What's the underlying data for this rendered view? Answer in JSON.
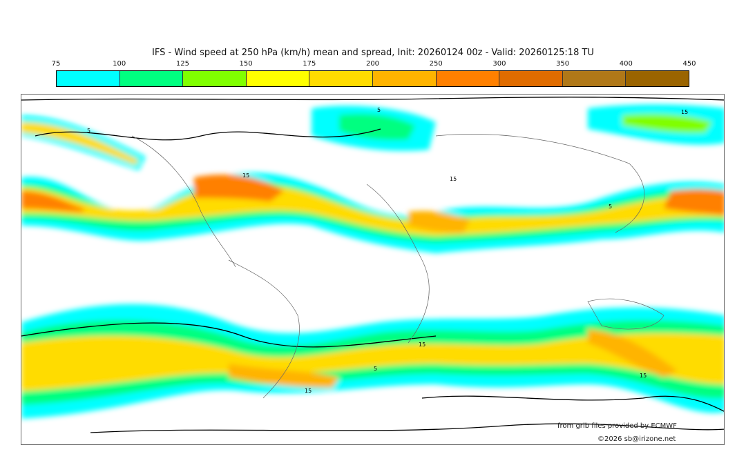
{
  "title": "IFS - Wind speed at 250 hPa (km/h) mean and spread, Init: 20260124 00z - Valid: 20260125:18 TU",
  "colorbar": {
    "ticks": [
      "75",
      "100",
      "125",
      "150",
      "175",
      "200",
      "250",
      "300",
      "350",
      "400",
      "450"
    ],
    "colors": [
      "#00ffff",
      "#00ff80",
      "#80ff00",
      "#ffff00",
      "#ffdc00",
      "#ffb400",
      "#ff8000",
      "#e06c00",
      "#b07818",
      "#9a6400"
    ]
  },
  "contour_labels": [
    "5",
    "15",
    "5",
    "15",
    "15",
    "5",
    "15",
    "5",
    "15",
    "15"
  ],
  "credits": {
    "source": "from grib files provided by ECMWF",
    "copyright": "©2026 sb@irizone.net"
  }
}
